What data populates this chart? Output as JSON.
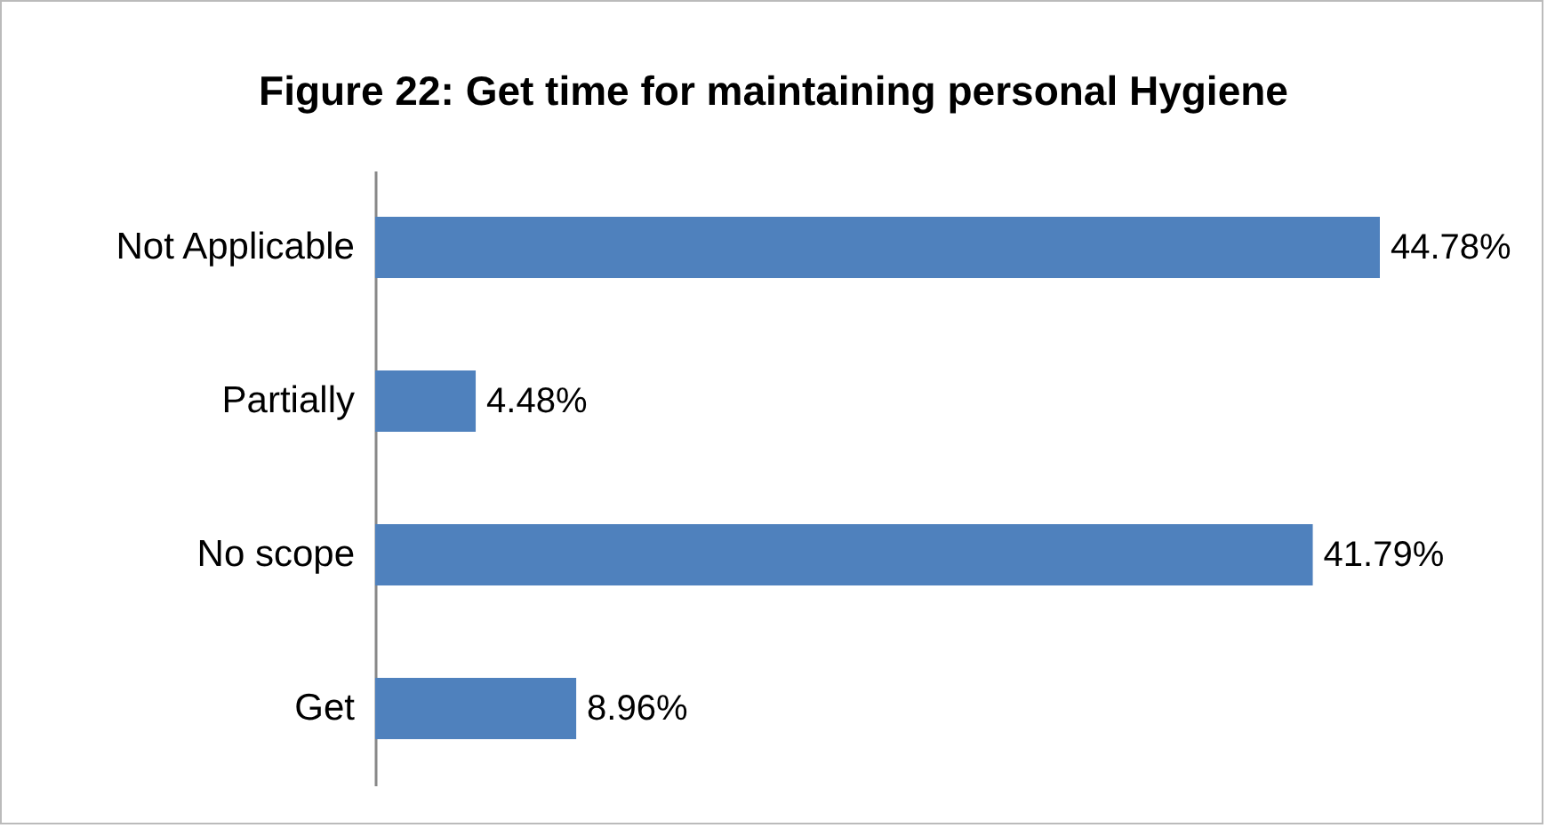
{
  "chart_data": {
    "type": "bar",
    "orientation": "horizontal",
    "title": "Figure 22: Get time for maintaining personal Hygiene",
    "categories": [
      "Not Applicable",
      "Partially",
      "No scope",
      "Get"
    ],
    "values": [
      44.78,
      4.48,
      41.79,
      8.96
    ],
    "value_labels": [
      "44.78%",
      "4.48%",
      "41.79%",
      "8.96%"
    ],
    "color": "#4f81bd"
  }
}
